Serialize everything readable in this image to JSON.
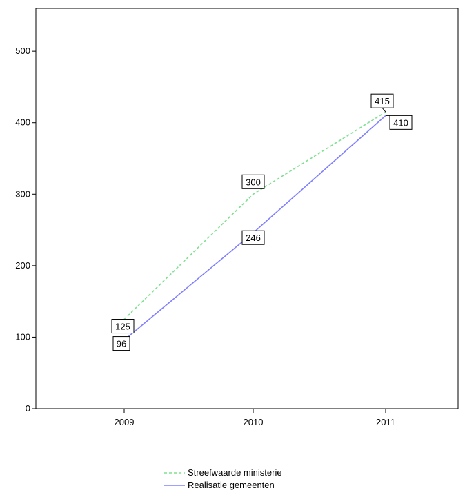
{
  "chart_data": {
    "type": "line",
    "title": "",
    "xlabel": "",
    "ylabel": "",
    "categories": [
      "2009",
      "2010",
      "2011"
    ],
    "ylim": [
      0,
      560
    ],
    "yticks": [
      "0",
      "100",
      "200",
      "300",
      "400",
      "500"
    ],
    "grid": false,
    "legend_position": "bottom-center",
    "series": [
      {
        "name": "Streefwaarde ministerie",
        "values": [
          125,
          300,
          415
        ],
        "labels": [
          "125",
          "300",
          "415"
        ],
        "color": "#7ee08f",
        "style": "dashed"
      },
      {
        "name": "Realisatie gemeenten",
        "values": [
          96,
          246,
          410
        ],
        "labels": [
          "96",
          "246",
          "410"
        ],
        "color": "#8080ff",
        "style": "solid"
      }
    ]
  }
}
